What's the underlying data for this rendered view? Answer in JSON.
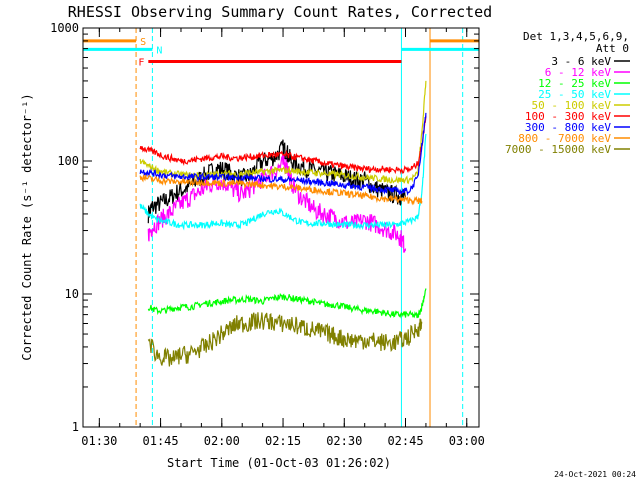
{
  "chart_data": {
    "type": "line",
    "title": "RHESSI Observing Summary Count Rates, Corrected",
    "xlabel": "Start Time (01-Oct-03 01:26:02)",
    "ylabel": "Corrected Count Rate (s⁻¹ detector⁻¹)",
    "yscale": "log",
    "ylim": [
      1,
      1000
    ],
    "xlim_minutes_after_0126": [
      0,
      97
    ],
    "x_tick_labels": [
      "01:30",
      "01:45",
      "02:00",
      "02:15",
      "02:30",
      "02:45",
      "03:00"
    ],
    "x_tick_minutes": [
      4,
      19,
      34,
      49,
      64,
      79,
      94
    ],
    "y_tick_labels": [
      "1",
      "10",
      "100",
      "1000"
    ],
    "y_tick_values": [
      1,
      10,
      100,
      1000
    ],
    "detector_info": [
      "Det 1,3,4,5,6,9,",
      "Att 0"
    ],
    "legend": [
      {
        "label": "3 - 6 keV",
        "color": "#000000"
      },
      {
        "label": "6 - 12 keV",
        "color": "#ff00ff"
      },
      {
        "label": "12 - 25 keV",
        "color": "#00ff00"
      },
      {
        "label": "25 - 50 keV",
        "color": "#00ffff"
      },
      {
        "label": "50 - 100 keV",
        "color": "#cccc00"
      },
      {
        "label": "100 - 300 keV",
        "color": "#ff0000"
      },
      {
        "label": "300 - 800 keV",
        "color": "#0000ff"
      },
      {
        "label": "800 - 7000 keV",
        "color": "#ff8c00"
      },
      {
        "label": "7000 - 15000 keV",
        "color": "#808000"
      }
    ],
    "series": [
      {
        "name": "3 - 6 keV",
        "color": "#000000",
        "x": [
          16,
          17,
          19,
          21,
          23,
          25,
          27,
          29,
          31,
          33,
          35,
          37,
          39,
          41,
          43,
          45,
          47,
          49,
          50,
          51,
          53,
          55,
          57,
          59,
          61,
          63,
          65,
          67,
          69,
          71,
          73,
          75,
          77,
          78,
          79
        ],
        "y": [
          40,
          45,
          48,
          52,
          58,
          62,
          68,
          75,
          82,
          88,
          85,
          78,
          74,
          78,
          95,
          102,
          108,
          125,
          115,
          100,
          92,
          88,
          84,
          82,
          80,
          78,
          75,
          72,
          72,
          64,
          60,
          57,
          55,
          54,
          52
        ]
      },
      {
        "name": "6 - 12 keV",
        "color": "#ff00ff",
        "x": [
          16,
          17,
          19,
          21,
          23,
          25,
          27,
          29,
          31,
          33,
          35,
          37,
          39,
          41,
          43,
          45,
          47,
          49,
          50,
          51,
          53,
          55,
          57,
          59,
          61,
          63,
          65,
          67,
          69,
          71,
          73,
          75,
          77,
          78,
          79
        ],
        "y": [
          28,
          32,
          36,
          40,
          45,
          50,
          55,
          60,
          66,
          70,
          68,
          60,
          56,
          62,
          70,
          78,
          85,
          95,
          92,
          70,
          55,
          48,
          42,
          40,
          38,
          36,
          34,
          34,
          36,
          34,
          32,
          30,
          28,
          26,
          22
        ]
      },
      {
        "name": "12 - 25 keV",
        "color": "#00ff00",
        "x": [
          16,
          18,
          20,
          22,
          24,
          26,
          28,
          30,
          32,
          34,
          36,
          38,
          40,
          42,
          44,
          46,
          48,
          50,
          52,
          54,
          56,
          58,
          60,
          62,
          64,
          66,
          68,
          70,
          72,
          74,
          76,
          78,
          80,
          82,
          83,
          84
        ],
        "y": [
          8,
          7.5,
          7.5,
          7.8,
          8,
          8,
          8.2,
          8.5,
          8.6,
          8.8,
          9,
          9,
          9.2,
          9,
          8.8,
          9.2,
          9.5,
          9.5,
          9.2,
          9,
          8.8,
          8.5,
          8.3,
          8.3,
          8,
          7.8,
          7.6,
          7.5,
          7.4,
          7.2,
          7,
          7,
          7,
          6.8,
          8,
          11
        ]
      },
      {
        "name": "25 - 50 keV",
        "color": "#00ffff",
        "x": [
          14,
          16,
          18,
          20,
          22,
          24,
          26,
          28,
          30,
          32,
          34,
          36,
          38,
          40,
          42,
          44,
          46,
          48,
          50,
          52,
          54,
          56,
          58,
          60,
          62,
          64,
          66,
          68,
          70,
          72,
          74,
          76,
          78,
          80,
          82,
          83,
          84
        ],
        "y": [
          46,
          40,
          36,
          35,
          34,
          33,
          33,
          33,
          33,
          34,
          34,
          33,
          33,
          34,
          37,
          40,
          42,
          42,
          39,
          36,
          34,
          34,
          34,
          34,
          33,
          33,
          33,
          33,
          33,
          33,
          33,
          33,
          34,
          35,
          38,
          55,
          160
        ]
      },
      {
        "name": "50 - 100 keV",
        "color": "#cccc00",
        "x": [
          14,
          16,
          18,
          20,
          22,
          24,
          26,
          28,
          30,
          32,
          34,
          36,
          38,
          40,
          42,
          44,
          46,
          48,
          50,
          52,
          54,
          56,
          58,
          60,
          62,
          64,
          66,
          68,
          70,
          72,
          74,
          76,
          78,
          80,
          82,
          83,
          84
        ],
        "y": [
          100,
          92,
          86,
          82,
          80,
          79,
          78,
          78,
          78,
          79,
          80,
          80,
          80,
          81,
          82,
          83,
          84,
          85,
          85,
          84,
          83,
          82,
          81,
          80,
          79,
          78,
          77,
          76,
          75,
          74,
          73,
          72,
          72,
          72,
          80,
          160,
          400
        ]
      },
      {
        "name": "100 - 300 keV",
        "color": "#ff0000",
        "x": [
          14,
          16,
          18,
          20,
          22,
          24,
          26,
          28,
          30,
          32,
          34,
          36,
          38,
          40,
          42,
          44,
          46,
          48,
          50,
          52,
          54,
          56,
          58,
          60,
          62,
          64,
          66,
          68,
          70,
          72,
          74,
          76,
          78,
          80,
          82,
          83,
          84
        ],
        "y": [
          128,
          120,
          115,
          108,
          104,
          100,
          101,
          103,
          105,
          107,
          108,
          106,
          105,
          107,
          108,
          110,
          111,
          112,
          110,
          107,
          104,
          101,
          98,
          95,
          93,
          91,
          89,
          88,
          87,
          87,
          87,
          86,
          86,
          86,
          95,
          130,
          220
        ]
      },
      {
        "name": "300 - 800 keV",
        "color": "#0000ff",
        "x": [
          14,
          16,
          18,
          20,
          22,
          24,
          26,
          28,
          30,
          32,
          34,
          36,
          38,
          40,
          42,
          44,
          46,
          48,
          50,
          52,
          54,
          56,
          58,
          60,
          62,
          64,
          66,
          68,
          70,
          72,
          74,
          76,
          78,
          80,
          82,
          83,
          84
        ],
        "y": [
          84,
          82,
          80,
          78,
          77,
          76,
          76,
          76,
          76,
          76,
          75,
          75,
          75,
          75,
          74,
          74,
          73,
          73,
          72,
          72,
          71,
          70,
          69,
          68,
          67,
          66,
          65,
          64,
          63,
          62,
          61,
          60,
          59,
          60,
          75,
          130,
          230
        ]
      },
      {
        "name": "800 - 7000 keV",
        "color": "#ff8c00",
        "x": [
          14,
          16,
          18,
          20,
          22,
          24,
          26,
          28,
          30,
          32,
          34,
          36,
          38,
          40,
          42,
          44,
          46,
          48,
          50,
          52,
          54,
          56,
          58,
          60,
          62,
          64,
          66,
          68,
          70,
          72,
          74,
          76,
          78,
          80,
          82,
          83
        ],
        "y": [
          76,
          74,
          72,
          71,
          70,
          70,
          69,
          69,
          69,
          69,
          68,
          68,
          68,
          67,
          67,
          66,
          65,
          64,
          64,
          63,
          62,
          61,
          60,
          59,
          58,
          57,
          56,
          55,
          54,
          53,
          52,
          52,
          51,
          51,
          50,
          50
        ]
      },
      {
        "name": "7000 - 15000 keV",
        "color": "#808000",
        "x": [
          16,
          18,
          20,
          22,
          24,
          26,
          28,
          30,
          32,
          34,
          36,
          38,
          40,
          42,
          44,
          46,
          48,
          50,
          52,
          54,
          56,
          58,
          60,
          62,
          64,
          66,
          68,
          70,
          72,
          74,
          76,
          78,
          80,
          82,
          83
        ],
        "y": [
          4.5,
          3.5,
          3.3,
          3.2,
          3.5,
          3.5,
          3.8,
          4,
          4.5,
          5,
          5.5,
          6,
          6,
          6.2,
          6.3,
          6.2,
          6,
          6,
          5.8,
          5.6,
          5.4,
          5.2,
          5,
          4.8,
          4.6,
          4.5,
          4.5,
          4.5,
          4.4,
          4.3,
          4.3,
          4.5,
          4.8,
          5.5,
          6
        ]
      }
    ],
    "status_bars": [
      {
        "flag": "S",
        "color": "#ff8c00",
        "level": 800,
        "x_start": 0,
        "x_end": 13,
        "restart": 85,
        "restart_end": 97
      },
      {
        "flag": "N",
        "color": "#00ffff",
        "level": 690,
        "x_start": 0,
        "x_end": 17,
        "restart": 78,
        "restart_end": 97
      },
      {
        "flag": "F",
        "color": "#ff0000",
        "level": 560,
        "x_start": 16,
        "x_end": 78
      }
    ],
    "vertical_markers": [
      {
        "x": 13,
        "color": "#ff8c00",
        "style": "dashed"
      },
      {
        "x": 17,
        "color": "#00ffff",
        "style": "dashed"
      },
      {
        "x": 78,
        "color": "#00ffff",
        "style": "solid"
      },
      {
        "x": 85,
        "color": "#ff8c00",
        "style": "solid"
      },
      {
        "x": 93,
        "color": "#00ffff",
        "style": "dashed"
      }
    ]
  },
  "footer": {
    "timestamp": "24-Oct-2021 00:24"
  }
}
